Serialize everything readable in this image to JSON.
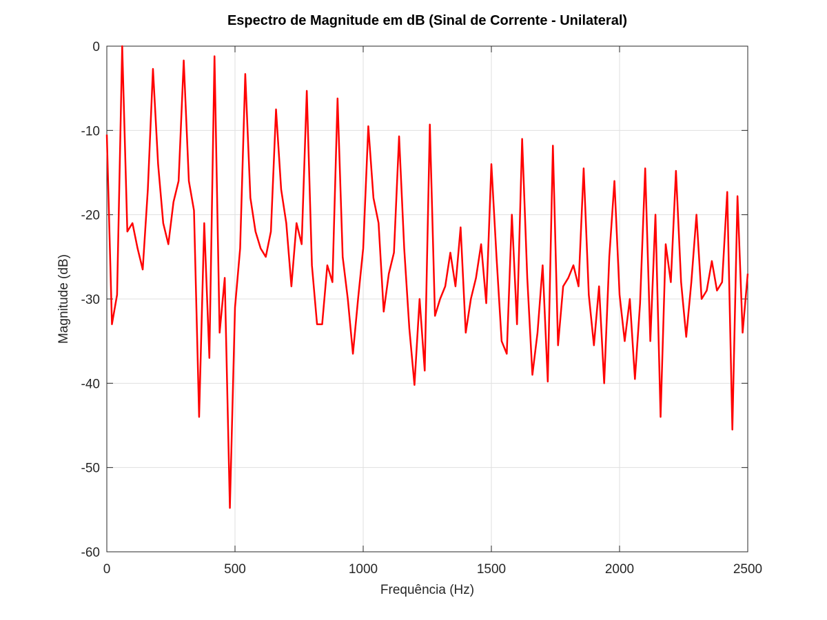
{
  "chart_data": {
    "type": "line",
    "title": "Espectro de Magnitude em dB (Sinal de Corrente - Unilateral)",
    "x_label": "Frequência (Hz)",
    "y_label": "Magnitude (dB)",
    "xlim": [
      0,
      2500
    ],
    "ylim": [
      -60,
      0
    ],
    "xticks": [
      0,
      500,
      1000,
      1500,
      2000,
      2500
    ],
    "yticks": [
      -60,
      -50,
      -40,
      -30,
      -20,
      -10,
      0
    ],
    "grid": true,
    "x": [
      0,
      20,
      40,
      60,
      80,
      100,
      120,
      140,
      160,
      180,
      200,
      220,
      240,
      260,
      280,
      300,
      320,
      340,
      360,
      380,
      400,
      420,
      440,
      460,
      480,
      500,
      520,
      540,
      560,
      580,
      600,
      620,
      640,
      660,
      680,
      700,
      720,
      740,
      760,
      780,
      800,
      820,
      840,
      860,
      880,
      900,
      920,
      940,
      960,
      980,
      1000,
      1020,
      1040,
      1060,
      1080,
      1100,
      1120,
      1140,
      1160,
      1180,
      1200,
      1220,
      1240,
      1260,
      1280,
      1300,
      1320,
      1340,
      1360,
      1380,
      1400,
      1420,
      1440,
      1460,
      1480,
      1500,
      1520,
      1540,
      1560,
      1580,
      1600,
      1620,
      1640,
      1660,
      1680,
      1700,
      1720,
      1740,
      1760,
      1780,
      1800,
      1820,
      1840,
      1860,
      1880,
      1900,
      1920,
      1940,
      1960,
      1980,
      2000,
      2020,
      2040,
      2060,
      2080,
      2100,
      2120,
      2140,
      2160,
      2180,
      2200,
      2220,
      2240,
      2260,
      2280,
      2300,
      2320,
      2340,
      2360,
      2380,
      2400,
      2420,
      2440,
      2460,
      2480,
      2500
    ],
    "series": [
      {
        "name": "Espectro",
        "color": "#ff0000",
        "values": [
          -10.5,
          -33,
          -29.5,
          0,
          -22,
          -21,
          -24,
          -26.5,
          -17,
          -2.7,
          -14,
          -21,
          -23.5,
          -18.5,
          -16,
          -1.7,
          -16,
          -19.5,
          -44,
          -21,
          -37,
          -1.2,
          -34,
          -27.5,
          -54.8,
          -31,
          -24,
          -3.3,
          -18,
          -22,
          -24,
          -25,
          -22,
          -7.5,
          -17,
          -21,
          -28.5,
          -21,
          -23.5,
          -5.3,
          -26,
          -33,
          -33,
          -26,
          -28,
          -6.2,
          -25,
          -30,
          -36.5,
          -30,
          -24,
          -9.5,
          -18,
          -21,
          -31.5,
          -27,
          -24.5,
          -10.7,
          -24,
          -33.5,
          -40.2,
          -30,
          -38.5,
          -9.3,
          -32,
          -30,
          -28.5,
          -24.5,
          -28.5,
          -21.5,
          -34,
          -30,
          -27.5,
          -23.5,
          -30.5,
          -14,
          -25,
          -35,
          -36.5,
          -20,
          -33,
          -11,
          -27.5,
          -39,
          -34,
          -26,
          -39.8,
          -11.8,
          -35.5,
          -28.5,
          -27.5,
          -26,
          -28.5,
          -14.5,
          -29.5,
          -35.5,
          -28.5,
          -40,
          -25,
          -16,
          -29.5,
          -35,
          -30,
          -39.5,
          -30.5,
          -14.5,
          -35,
          -20,
          -44,
          -23.5,
          -28,
          -14.8,
          -28,
          -34.5,
          -28,
          -20,
          -30,
          -29,
          -25.5,
          -29,
          -28,
          -17.3,
          -45.5,
          -17.8,
          -34,
          -27
        ]
      }
    ]
  }
}
